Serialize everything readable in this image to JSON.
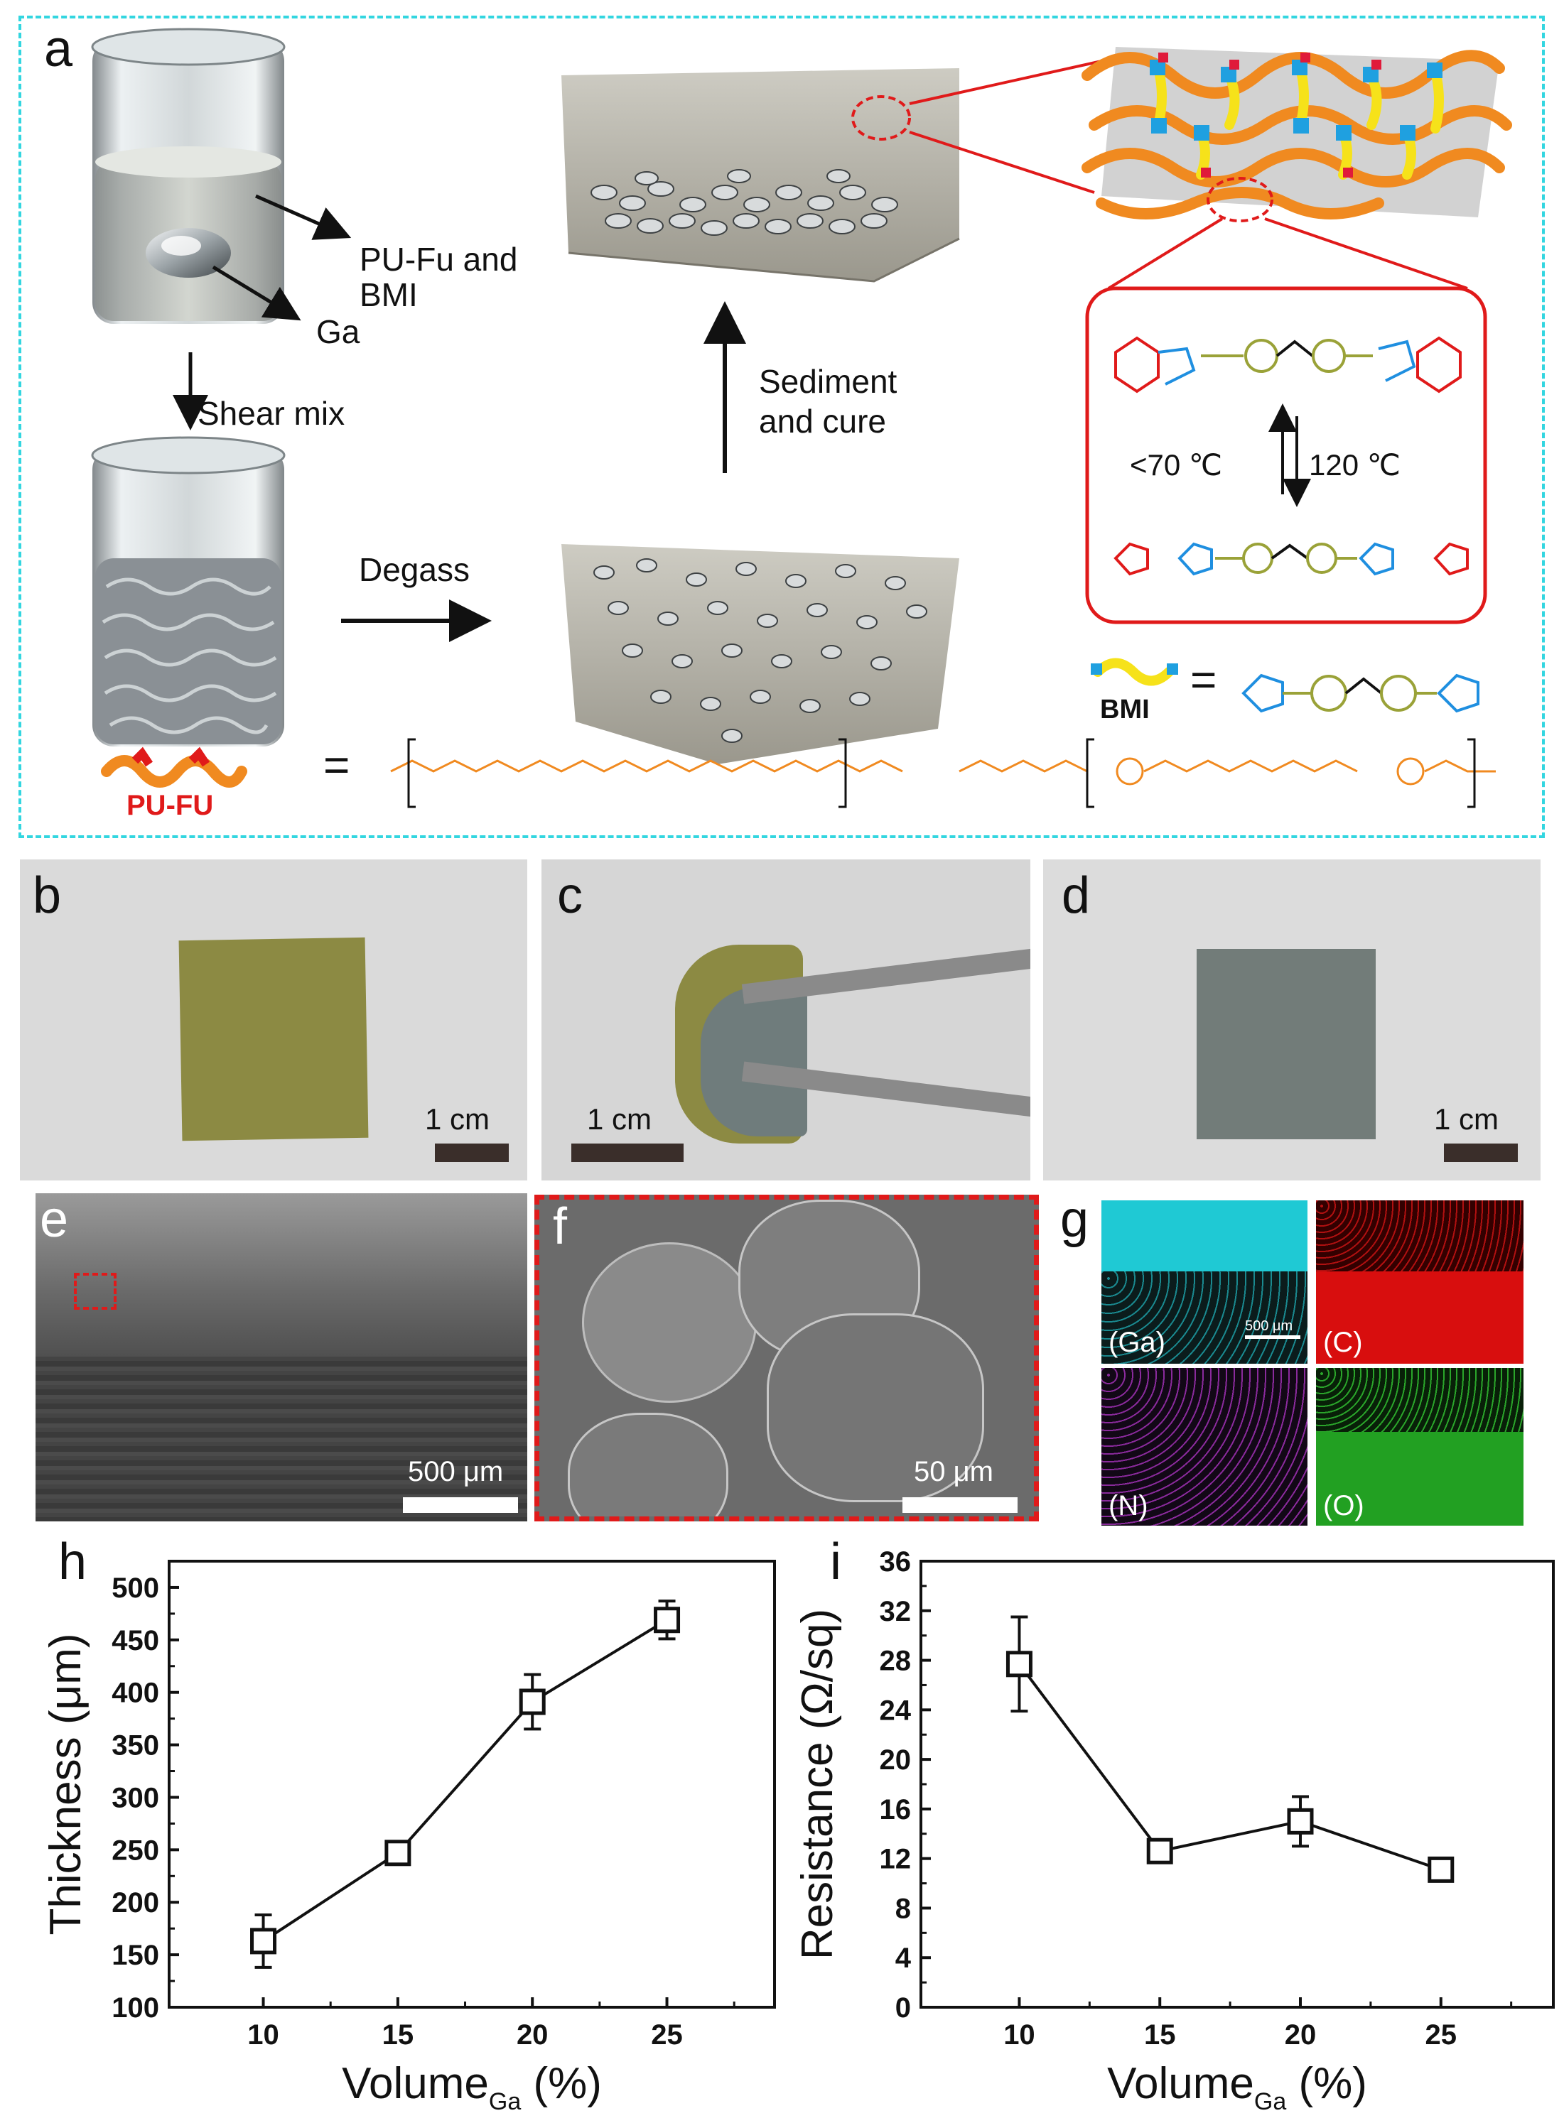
{
  "panel_labels": {
    "a": "a",
    "b": "b",
    "c": "c",
    "d": "d",
    "e": "e",
    "f": "f",
    "g": "g",
    "h": "h",
    "i": "i"
  },
  "panel_a": {
    "label_pufu_bmi_line1": "PU-Fu and",
    "label_pufu_bmi_line2": "BMI",
    "label_ga": "Ga",
    "label_shear": "Shear mix",
    "label_degass": "Degass",
    "label_sediment_line1": "Sediment",
    "label_sediment_line2": "and cure",
    "label_low_temp": "<70 ℃",
    "label_high_temp": "120 ℃",
    "label_bmi": "BMI",
    "label_pufu": "PU-FU",
    "equals": "="
  },
  "photos": {
    "b_scale": "1 cm",
    "c_scale": "1 cm",
    "d_scale": "1 cm"
  },
  "sem": {
    "e_scale": "500 μm",
    "f_scale": "50 μm"
  },
  "eds": {
    "ga": "(Ga)",
    "c": "(C)",
    "n": "(N)",
    "o": "(O)",
    "scale": "500 μm",
    "colors": {
      "ga": "#1fd6e0",
      "c": "#e01010",
      "n": "#8a2a9c",
      "o": "#2fb52f"
    }
  },
  "chart_data": [
    {
      "type": "line",
      "panel": "h",
      "x": [
        10,
        15,
        20,
        25
      ],
      "y": [
        163,
        247,
        391,
        469
      ],
      "y_err": [
        25,
        6,
        26,
        18
      ],
      "xlabel": "Volume",
      "xlabel_sub": "Ga",
      "xlabel_unit": " (%)",
      "ylabel": "Thickness (μm)",
      "xlim": [
        6.5,
        29
      ],
      "ylim": [
        100,
        525
      ],
      "xticks": [
        "10",
        "15",
        "20",
        "25"
      ],
      "yticks": [
        "100",
        "150",
        "200",
        "250",
        "300",
        "350",
        "400",
        "450",
        "500"
      ],
      "marker": "open-square"
    },
    {
      "type": "line",
      "panel": "i",
      "x": [
        10,
        15,
        20,
        25
      ],
      "y": [
        27.7,
        12.6,
        15.0,
        11.1
      ],
      "y_err": [
        3.8,
        0.4,
        2.0,
        0.4
      ],
      "xlabel": "Volume",
      "xlabel_sub": "Ga",
      "xlabel_unit": " (%)",
      "ylabel": "Resistance (Ω/sq)",
      "xlim": [
        6.5,
        29
      ],
      "ylim": [
        0,
        36
      ],
      "xticks": [
        "10",
        "15",
        "20",
        "25"
      ],
      "yticks": [
        "0",
        "4",
        "8",
        "12",
        "16",
        "20",
        "24",
        "28",
        "32",
        "36"
      ],
      "marker": "open-square"
    }
  ]
}
